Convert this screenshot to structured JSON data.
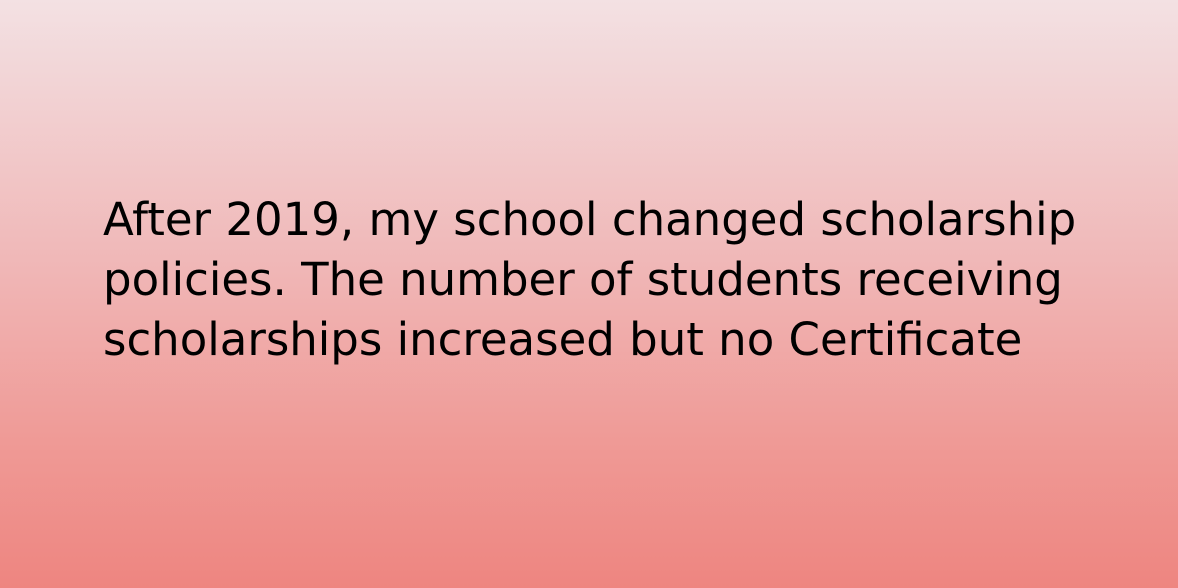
{
  "slide": {
    "lines": [
      "After 2019, my school changed scholarship",
      "policies. The number of students receiving",
      "scholarships increased but no Certificate"
    ]
  },
  "colors": {
    "text": "#000000",
    "gradient_top": "#f3e1e3",
    "gradient_bottom": "#ee8580"
  }
}
